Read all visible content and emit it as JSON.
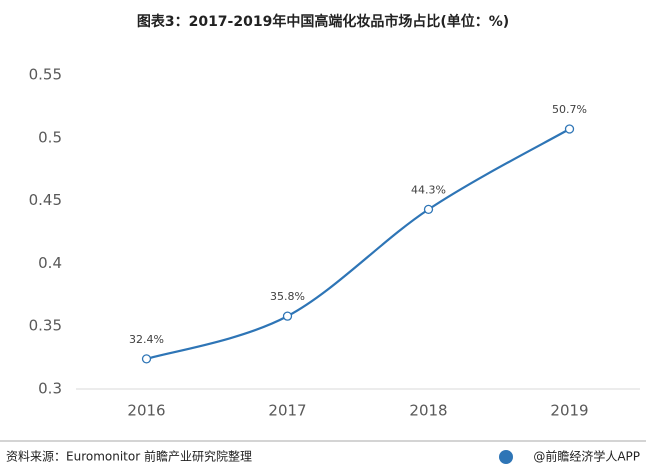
{
  "chart_data": {
    "type": "line",
    "title": "图表3：2017-2019年中国高端化妆品市场占比(单位：%)",
    "categories": [
      "2016",
      "2017",
      "2018",
      "2019"
    ],
    "values": [
      0.324,
      0.358,
      0.443,
      0.507
    ],
    "value_labels": [
      "32.4%",
      "35.8%",
      "44.3%",
      "50.7%"
    ],
    "color": "#2e75b6",
    "ylim": [
      0.3,
      0.55
    ],
    "yticks": [
      0.3,
      0.35,
      0.4,
      0.45,
      0.5,
      0.55
    ],
    "grid": false,
    "source": "资料来源：Euromonitor 前瞻产业研究院整理",
    "brand": "@前瞻经济学人APP"
  }
}
